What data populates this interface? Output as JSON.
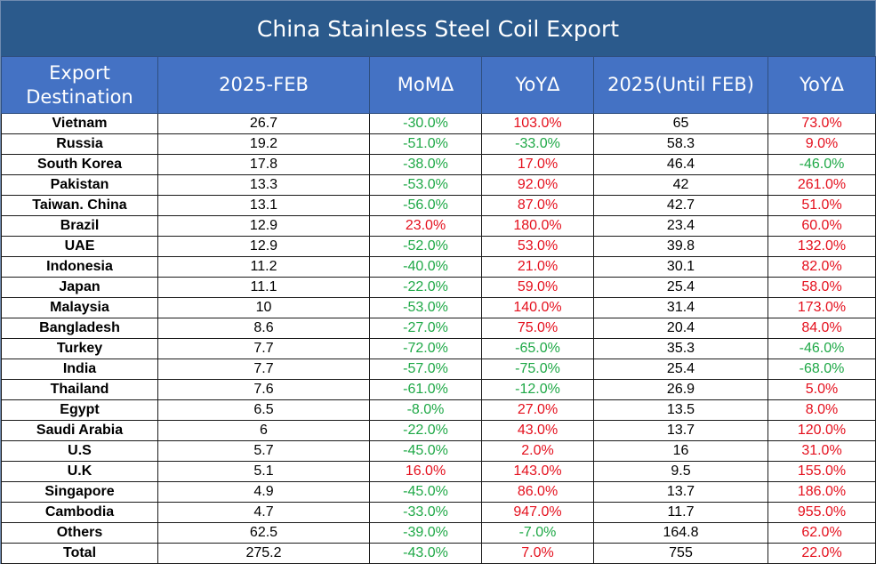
{
  "chart_data": {
    "type": "table",
    "title": "China Stainless Steel Coil Export",
    "columns": [
      "Export Destination",
      "2025-FEB",
      "MoMΔ",
      "YoYΔ",
      "2025(Until FEB)",
      "YoYΔ"
    ],
    "rows": [
      [
        "Vietnam",
        "26.7",
        "-30.0%",
        "103.0%",
        "65",
        "73.0%"
      ],
      [
        "Russia",
        "19.2",
        "-51.0%",
        "-33.0%",
        "58.3",
        "9.0%"
      ],
      [
        "South Korea",
        "17.8",
        "-38.0%",
        "17.0%",
        "46.4",
        "-46.0%"
      ],
      [
        "Pakistan",
        "13.3",
        "-53.0%",
        "92.0%",
        "42",
        "261.0%"
      ],
      [
        "Taiwan. China",
        "13.1",
        "-56.0%",
        "87.0%",
        "42.7",
        "51.0%"
      ],
      [
        "Brazil",
        "12.9",
        "23.0%",
        "180.0%",
        "23.4",
        "60.0%"
      ],
      [
        "UAE",
        "12.9",
        "-52.0%",
        "53.0%",
        "39.8",
        "132.0%"
      ],
      [
        "Indonesia",
        "11.2",
        "-40.0%",
        "21.0%",
        "30.1",
        "82.0%"
      ],
      [
        "Japan",
        "11.1",
        "-22.0%",
        "59.0%",
        "25.4",
        "58.0%"
      ],
      [
        "Malaysia",
        "10",
        "-53.0%",
        "140.0%",
        "31.4",
        "173.0%"
      ],
      [
        "Bangladesh",
        "8.6",
        "-27.0%",
        "75.0%",
        "20.4",
        "84.0%"
      ],
      [
        "Turkey",
        "7.7",
        "-72.0%",
        "-65.0%",
        "35.3",
        "-46.0%"
      ],
      [
        "India",
        "7.7",
        "-57.0%",
        "-75.0%",
        "25.4",
        "-68.0%"
      ],
      [
        "Thailand",
        "7.6",
        "-61.0%",
        "-12.0%",
        "26.9",
        "5.0%"
      ],
      [
        "Egypt",
        "6.5",
        "-8.0%",
        "27.0%",
        "13.5",
        "8.0%"
      ],
      [
        "Saudi Arabia",
        "6",
        "-22.0%",
        "43.0%",
        "13.7",
        "120.0%"
      ],
      [
        "U.S",
        "5.7",
        "-45.0%",
        "2.0%",
        "16",
        "31.0%"
      ],
      [
        "U.K",
        "5.1",
        "16.0%",
        "143.0%",
        "9.5",
        "155.0%"
      ],
      [
        "Singapore",
        "4.9",
        "-45.0%",
        "86.0%",
        "13.7",
        "186.0%"
      ],
      [
        "Cambodia",
        "4.7",
        "-33.0%",
        "947.0%",
        "11.7",
        "955.0%"
      ],
      [
        "Others",
        "62.5",
        "-39.0%",
        "-7.0%",
        "164.8",
        "62.0%"
      ],
      [
        "Total",
        "275.2",
        "-43.0%",
        "7.0%",
        "755",
        "22.0%"
      ]
    ]
  },
  "colors": {
    "title_bg": "#2b5a8c",
    "header_bg": "#4472c4",
    "negative": "#1ea846",
    "positive": "#e4101d"
  }
}
